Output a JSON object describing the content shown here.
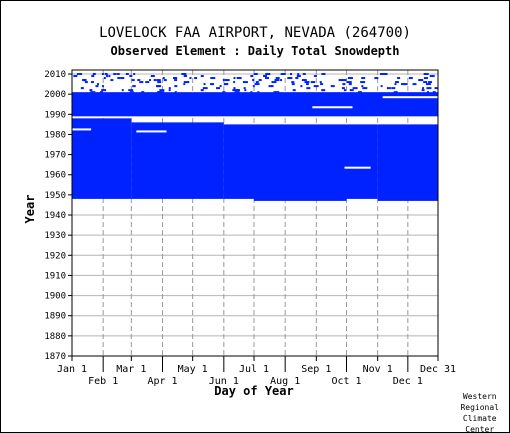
{
  "chart_data": {
    "type": "heatmap",
    "title": "LOVELOCK FAA AIRPORT, NEVADA   (264700)",
    "subtitle": "Observed Element : Daily Total Snowdepth",
    "xlabel": "Day of Year",
    "ylabel": "Year",
    "xlim": [
      1,
      365
    ],
    "ylim": [
      1870,
      2012
    ],
    "x_ticks_top_row": [
      "Jan 1",
      "Mar 1",
      "May 1",
      "Jul 1",
      "Sep 1",
      "Nov 1",
      "Dec 31"
    ],
    "x_ticks_bottom_row": [
      "Feb 1",
      "Apr 1",
      "Jun 1",
      "Aug 1",
      "Oct 1",
      "Dec 1"
    ],
    "x_tick_days": [
      1,
      32,
      60,
      91,
      121,
      152,
      182,
      213,
      244,
      274,
      305,
      335,
      365
    ],
    "y_ticks": [
      1870,
      1880,
      1890,
      1900,
      1910,
      1920,
      1930,
      1940,
      1950,
      1960,
      1970,
      1980,
      1990,
      2000,
      2010
    ],
    "grid": true,
    "data_color": "#0022ff",
    "record_blocks": [
      {
        "day_start": 1,
        "day_end": 365,
        "year_start": 1989,
        "year_end": 2000
      },
      {
        "day_start": 1,
        "day_end": 60,
        "year_start": 1948,
        "year_end": 1987
      },
      {
        "day_start": 60,
        "day_end": 152,
        "year_start": 1948,
        "year_end": 1985
      },
      {
        "day_start": 152,
        "day_end": 182,
        "year_start": 1948,
        "year_end": 1984
      },
      {
        "day_start": 182,
        "day_end": 274,
        "year_start": 1947,
        "year_end": 1984
      },
      {
        "day_start": 274,
        "day_end": 305,
        "year_start": 1948,
        "year_end": 1984
      },
      {
        "day_start": 305,
        "day_end": 365,
        "year_start": 1947,
        "year_end": 1984
      }
    ],
    "missing_segments": [
      {
        "day_start": 240,
        "day_end": 280,
        "year": 1993
      },
      {
        "day_start": 272,
        "day_end": 298,
        "year": 1963
      },
      {
        "day_start": 65,
        "day_end": 95,
        "year": 1981
      },
      {
        "day_start": 1,
        "day_end": 20,
        "year": 1982
      },
      {
        "day_start": 310,
        "day_end": 365,
        "year": 1998
      }
    ],
    "sparse_years": [
      2001,
      2002,
      2003,
      2004,
      2005,
      2006,
      2007,
      2008,
      2009,
      2010
    ]
  },
  "credit": [
    "Western",
    "Regional",
    "Climate",
    "Center"
  ]
}
